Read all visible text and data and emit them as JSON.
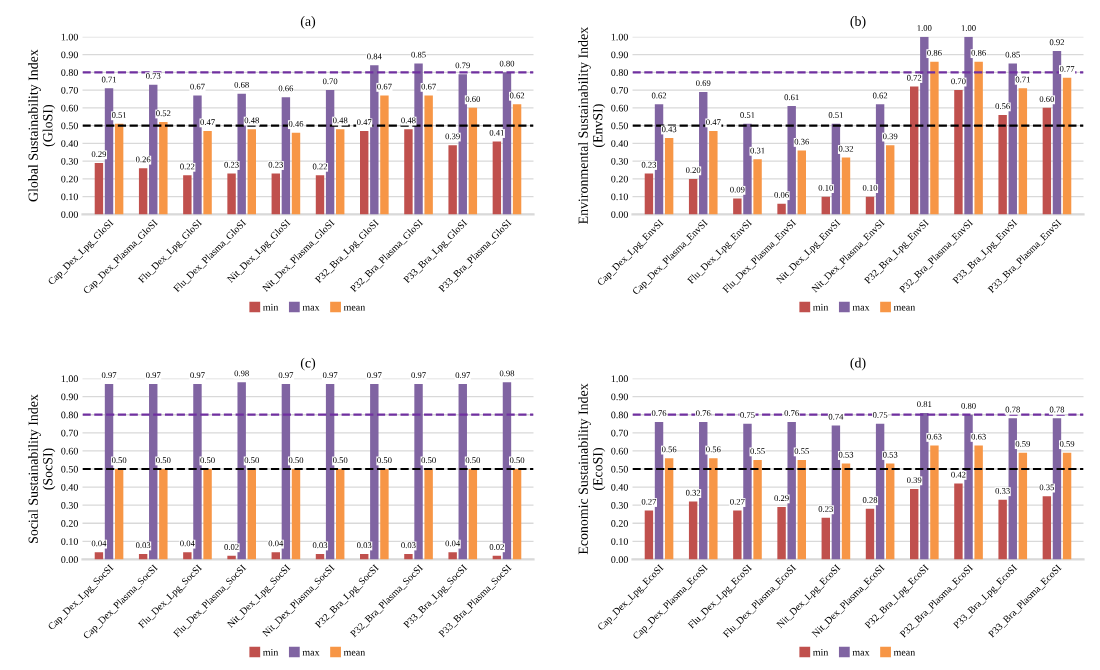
{
  "chart_data": [
    {
      "type": "bar",
      "title": "(a)",
      "ylabel": "Global Sustainability Index\n(GloSI)",
      "categories": [
        "Cap_Dex_Lpg_GloSI",
        "Cap_Dex_Plasma_GloSI",
        "Flu_Dex_Lpg_GloSI",
        "Flu_Dex_Plasma_GloSI",
        "Nit_Dex_Lpg_GloSI",
        "Nit_Dex_Plasma_GloSI",
        "P32_Bra_Lpg_GloSI",
        "P32_Bra_Plasma_GloSI",
        "P33_Bra_Lpg_GloSI",
        "P33_Bra_Plasma_GloSI"
      ],
      "series": [
        {
          "name": "min",
          "color": "#c0504d",
          "values": [
            0.29,
            0.26,
            0.22,
            0.23,
            0.23,
            0.22,
            0.47,
            0.48,
            0.39,
            0.41
          ],
          "value_labels": [
            "0.29",
            "0.26",
            "0.22",
            "0.23",
            "0.23",
            "0.22",
            "0.47",
            "0.48",
            "0.39",
            "0.41"
          ]
        },
        {
          "name": "max",
          "color": "#8064a2",
          "values": [
            0.71,
            0.73,
            0.67,
            0.68,
            0.66,
            0.7,
            0.84,
            0.85,
            0.79,
            0.8
          ],
          "value_labels": [
            "0.71",
            "0.73",
            "0.67",
            "0.68",
            "0.66",
            "0.70",
            "0.84",
            "0.85",
            "0.79",
            "0.80"
          ]
        },
        {
          "name": "mean",
          "color": "#f79646",
          "values": [
            0.51,
            0.52,
            0.47,
            0.48,
            0.46,
            0.48,
            0.67,
            0.67,
            0.6,
            0.62
          ],
          "value_labels": [
            "0.51",
            "0.52",
            "0.47",
            "0.48",
            "0.46",
            "0.48",
            "0.67",
            "0.67",
            "0.60",
            "0.62"
          ]
        }
      ],
      "ylim": [
        0,
        1
      ],
      "yticks": [
        {
          "value": 0,
          "label": "0.00"
        },
        {
          "value": 0.1,
          "label": "0.10"
        },
        {
          "value": 0.2,
          "label": "0.20"
        },
        {
          "value": 0.3,
          "label": "0.30"
        },
        {
          "value": 0.4,
          "label": "0.40"
        },
        {
          "value": 0.5,
          "label": "0.50"
        },
        {
          "value": 0.6,
          "label": "0.60"
        },
        {
          "value": 0.7,
          "label": "0.70"
        },
        {
          "value": 0.8,
          "label": "0.80"
        },
        {
          "value": 0.9,
          "label": "0.90"
        },
        {
          "value": 1,
          "label": "1.00"
        }
      ],
      "ref_lines": [
        {
          "axis": "y",
          "value": 0.8,
          "color": "#7030a0",
          "line_style": "dashed"
        },
        {
          "axis": "y",
          "value": 0.5,
          "color": "#000000",
          "line_style": "dashed"
        }
      ],
      "grid": "y",
      "legend": "bottom"
    },
    {
      "type": "bar",
      "title": "(b)",
      "ylabel": "Environmental Sustainability Index\n(EnvSI)",
      "categories": [
        "Cap_Dex_Lpg_EnvSI",
        "Cap_Dex_Plasma_EnvSI",
        "Flu_Dex_Lpg_EnvSI",
        "Flu_Dex_Plasma_EnvSI",
        "Nit_Dex_Lpg_EnvSI",
        "Nit_Dex_Plasma_EnvSI",
        "P32_Bra_Lpg_EnvSI",
        "P32_Bra_Plasma_EnvSI",
        "P33_Bra_Lpg_EnvSI",
        "P33_Bra_Plasma_EnvSI"
      ],
      "series": [
        {
          "name": "min",
          "color": "#c0504d",
          "values": [
            0.23,
            0.2,
            0.09,
            0.06,
            0.1,
            0.1,
            0.72,
            0.7,
            0.56,
            0.6
          ],
          "value_labels": [
            "0.23",
            "0.20",
            "0.09",
            "0.06",
            "0.10",
            "0.10",
            "0.72",
            "0.70",
            "0.56",
            "0.60"
          ]
        },
        {
          "name": "max",
          "color": "#8064a2",
          "values": [
            0.62,
            0.69,
            0.51,
            0.61,
            0.51,
            0.62,
            1.0,
            1.0,
            0.85,
            0.92
          ],
          "value_labels": [
            "0.62",
            "0.69",
            "0.51",
            "0.61",
            "0.51",
            "0.62",
            "1.00",
            "1.00",
            "0.85",
            "0.92"
          ]
        },
        {
          "name": "mean",
          "color": "#f79646",
          "values": [
            0.43,
            0.47,
            0.31,
            0.36,
            0.32,
            0.39,
            0.86,
            0.86,
            0.71,
            0.77
          ],
          "value_labels": [
            "0.43",
            "0.47",
            "0.31",
            "0.36",
            "0.32",
            "0.39",
            "0.86",
            "0.86",
            "0.71",
            "0.77"
          ]
        }
      ],
      "ylim": [
        0,
        1
      ],
      "yticks": [
        {
          "value": 0,
          "label": "0.00"
        },
        {
          "value": 0.1,
          "label": "0.10"
        },
        {
          "value": 0.2,
          "label": "0.20"
        },
        {
          "value": 0.3,
          "label": "0.30"
        },
        {
          "value": 0.4,
          "label": "0.40"
        },
        {
          "value": 0.5,
          "label": "0.50"
        },
        {
          "value": 0.6,
          "label": "0.60"
        },
        {
          "value": 0.7,
          "label": "0.70"
        },
        {
          "value": 0.8,
          "label": "0.80"
        },
        {
          "value": 0.9,
          "label": "0.90"
        },
        {
          "value": 1,
          "label": "1.00"
        }
      ],
      "ref_lines": [
        {
          "axis": "y",
          "value": 0.8,
          "color": "#7030a0",
          "line_style": "dashed"
        },
        {
          "axis": "y",
          "value": 0.5,
          "color": "#000000",
          "line_style": "dashed"
        }
      ],
      "grid": "y",
      "legend": "bottom"
    },
    {
      "type": "bar",
      "title": "(c)",
      "ylabel": "Social Sustainability Index\n(SocSI)",
      "categories": [
        "Cap_Dex_Lpg_SocSI",
        "Cap_Dex_Plasma_SocSI",
        "Flu_Dex_Lpg_SocSI",
        "Flu_Dex_Plasma_SocSI",
        "Nit_Dex_Lpg_SocSI",
        "Nit_Dex_Plasma_SocSI",
        "P32_Bra_Lpg_SocSI",
        "P32_Bra_Plasma_SocSI",
        "P33_Bra_Lpg_SocSI",
        "P33_Bra_Plasma_SocSI"
      ],
      "series": [
        {
          "name": "min",
          "color": "#c0504d",
          "values": [
            0.04,
            0.03,
            0.04,
            0.02,
            0.04,
            0.03,
            0.03,
            0.03,
            0.04,
            0.02
          ],
          "value_labels": [
            "0.04",
            "0.03",
            "0.04",
            "0.02",
            "0.04",
            "0.03",
            "0.03",
            "0.03",
            "0.04",
            "0.02"
          ]
        },
        {
          "name": "max",
          "color": "#8064a2",
          "values": [
            0.97,
            0.97,
            0.97,
            0.98,
            0.97,
            0.97,
            0.97,
            0.97,
            0.97,
            0.98
          ],
          "value_labels": [
            "0.97",
            "0.97",
            "0.97",
            "0.98",
            "0.97",
            "0.97",
            "0.97",
            "0.97",
            "0.97",
            "0.98"
          ]
        },
        {
          "name": "mean",
          "color": "#f79646",
          "values": [
            0.5,
            0.5,
            0.5,
            0.5,
            0.5,
            0.5,
            0.5,
            0.5,
            0.5,
            0.5
          ],
          "value_labels": [
            "0.50",
            "0.50",
            "0.50",
            "0.50",
            "0.50",
            "0.50",
            "0.50",
            "0.50",
            "0.50",
            "0.50"
          ]
        }
      ],
      "ylim": [
        0,
        1
      ],
      "yticks": [
        {
          "value": 0,
          "label": "0.00"
        },
        {
          "value": 0.1,
          "label": "0.10"
        },
        {
          "value": 0.2,
          "label": "0.20"
        },
        {
          "value": 0.3,
          "label": "0.30"
        },
        {
          "value": 0.4,
          "label": "0.40"
        },
        {
          "value": 0.5,
          "label": "0.50"
        },
        {
          "value": 0.6,
          "label": "0.60"
        },
        {
          "value": 0.7,
          "label": "0.70"
        },
        {
          "value": 0.8,
          "label": "0.80"
        },
        {
          "value": 0.9,
          "label": "0.90"
        },
        {
          "value": 1,
          "label": "1.00"
        }
      ],
      "ref_lines": [
        {
          "axis": "y",
          "value": 0.8,
          "color": "#7030a0",
          "line_style": "dashed"
        },
        {
          "axis": "y",
          "value": 0.5,
          "color": "#000000",
          "line_style": "dashed"
        }
      ],
      "grid": "y",
      "legend": "bottom"
    },
    {
      "type": "bar",
      "title": "(d)",
      "ylabel": "Economic Sustainability Index\n(EcoSI)",
      "categories": [
        "Cap_Dex_Lpg_EcoSI",
        "Cap_Dex_Plasma_EcoSI",
        "Flu_Dex_Lpg_EcoSI",
        "Flu_Dex_Plasma_EcoSI",
        "Nit_Dex_Lpg_EcoSI",
        "Nit_Dex_Plasma_EcoSI",
        "P32_Bra_Lpg_EcoSI",
        "P32_Bra_Plasma_EcoSI",
        "P33_Bra_Lpg_EcoSI",
        "P33_Bra_Plasma_EcoSI"
      ],
      "series": [
        {
          "name": "min",
          "color": "#c0504d",
          "values": [
            0.27,
            0.32,
            0.27,
            0.29,
            0.23,
            0.28,
            0.39,
            0.42,
            0.33,
            0.35
          ],
          "value_labels": [
            "0.27",
            "0.32",
            "0.27",
            "0.29",
            "0.23",
            "0.28",
            "0.39",
            "0.42",
            "0.33",
            "0.35"
          ]
        },
        {
          "name": "max",
          "color": "#8064a2",
          "values": [
            0.76,
            0.76,
            0.75,
            0.76,
            0.74,
            0.75,
            0.81,
            0.8,
            0.78,
            0.78
          ],
          "value_labels": [
            "0.76",
            "0.76",
            "0.75",
            "0.76",
            "0.74",
            "0.75",
            "0.81",
            "0.80",
            "0.78",
            "0.78"
          ]
        },
        {
          "name": "mean",
          "color": "#f79646",
          "values": [
            0.56,
            0.56,
            0.55,
            0.55,
            0.53,
            0.53,
            0.63,
            0.63,
            0.59,
            0.59
          ],
          "value_labels": [
            "0.56",
            "0.56",
            "0.55",
            "0.55",
            "0.53",
            "0.53",
            "0.63",
            "0.63",
            "0.59",
            "0.59"
          ]
        }
      ],
      "ylim": [
        0,
        1
      ],
      "yticks": [
        {
          "value": 0,
          "label": "0.00"
        },
        {
          "value": 0.1,
          "label": "0.10"
        },
        {
          "value": 0.2,
          "label": "0.20"
        },
        {
          "value": 0.3,
          "label": "0.30"
        },
        {
          "value": 0.4,
          "label": "0.40"
        },
        {
          "value": 0.5,
          "label": "0.50"
        },
        {
          "value": 0.6,
          "label": "0.60"
        },
        {
          "value": 0.7,
          "label": "0.70"
        },
        {
          "value": 0.8,
          "label": "0.80"
        },
        {
          "value": 0.9,
          "label": "0.90"
        },
        {
          "value": 1,
          "label": "1.00"
        }
      ],
      "ref_lines": [
        {
          "axis": "y",
          "value": 0.8,
          "color": "#7030a0",
          "line_style": "dashed"
        },
        {
          "axis": "y",
          "value": 0.5,
          "color": "#000000",
          "line_style": "dashed"
        }
      ],
      "grid": "y",
      "legend": "bottom"
    }
  ]
}
